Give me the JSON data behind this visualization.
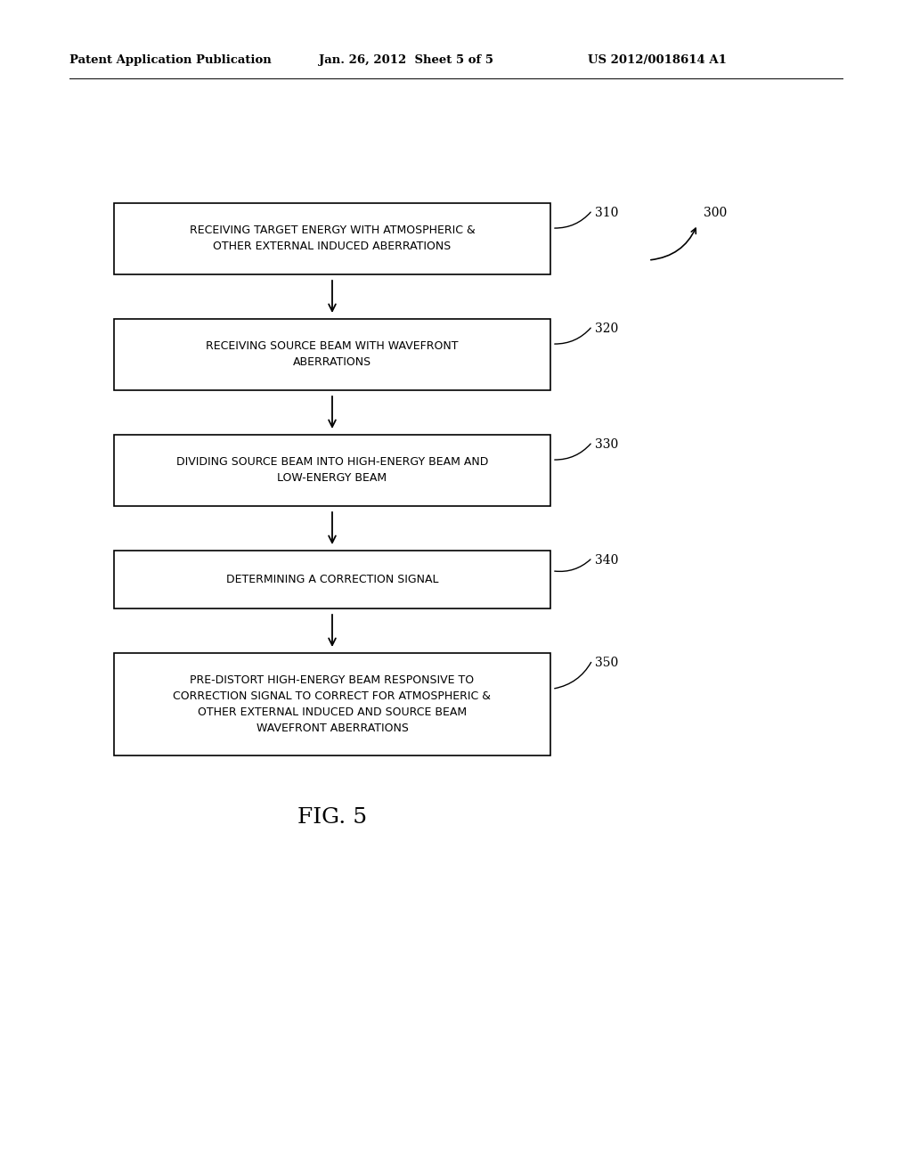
{
  "header_left": "Patent Application Publication",
  "header_center": "Jan. 26, 2012  Sheet 5 of 5",
  "header_right": "US 2012/0018614 A1",
  "figure_label": "FIG. 5",
  "boxes": [
    {
      "label": "RECEIVING TARGET ENERGY WITH ATMOSPHERIC &\nOTHER EXTERNAL INDUCED ABERRATIONS",
      "ref": "310"
    },
    {
      "label": "RECEIVING SOURCE BEAM WITH WAVEFRONT\nABERRATIONS",
      "ref": "320"
    },
    {
      "label": "DIVIDING SOURCE BEAM INTO HIGH-ENERGY BEAM AND\nLOW-ENERGY BEAM",
      "ref": "330"
    },
    {
      "label": "DETERMINING A CORRECTION SIGNAL",
      "ref": "340"
    },
    {
      "label": "PRE-DISTORT HIGH-ENERGY BEAM RESPONSIVE TO\nCORRECTION SIGNAL TO CORRECT FOR ATMOSPHERIC &\nOTHER EXTERNAL INDUCED AND SOURCE BEAM\nWAVEFRONT ABERRATIONS",
      "ref": "350"
    }
  ],
  "diagram_ref": "300",
  "bg_color": "#ffffff",
  "box_edge_color": "#000000",
  "box_face_color": "#ffffff",
  "text_color": "#000000",
  "arrow_color": "#000000",
  "font_size_box": 9.0,
  "font_size_header": 9.5,
  "font_size_ref": 10.0,
  "font_size_fig": 18
}
